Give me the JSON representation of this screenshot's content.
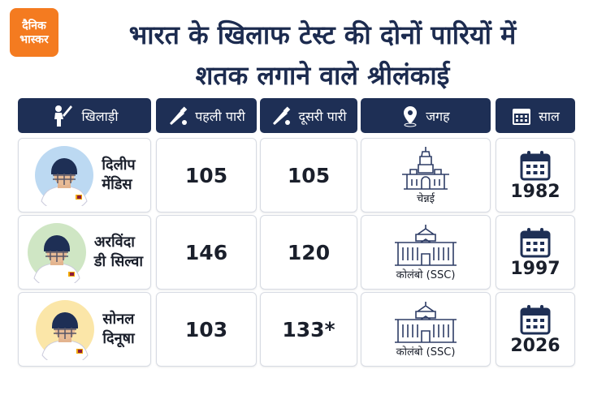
{
  "header": {
    "logo": [
      "दैनिक",
      "भास्कर"
    ],
    "title": [
      "भारत के खिलाफ टेस्ट की दोनों पारियों में",
      "शतक लगाने वाले श्रीलंकाई"
    ]
  },
  "table": {
    "columns": [
      "खिलाड़ी",
      "पहली पारी",
      "दूसरी पारी",
      "जगह",
      "साल"
    ],
    "rows": [
      [
        [
          "दिलीप",
          "मेंडिस"
        ],
        105,
        105,
        "चेन्नई",
        1982
      ],
      [
        [
          "अरविंदा",
          "डी सिल्वा"
        ],
        146,
        120,
        "कोलंबो (SSC)",
        1997
      ],
      [
        [
          "सोनल",
          "दिनूषा"
        ],
        103,
        "133*",
        "कोलंबो (SSC)",
        2026
      ]
    ]
  }
}
